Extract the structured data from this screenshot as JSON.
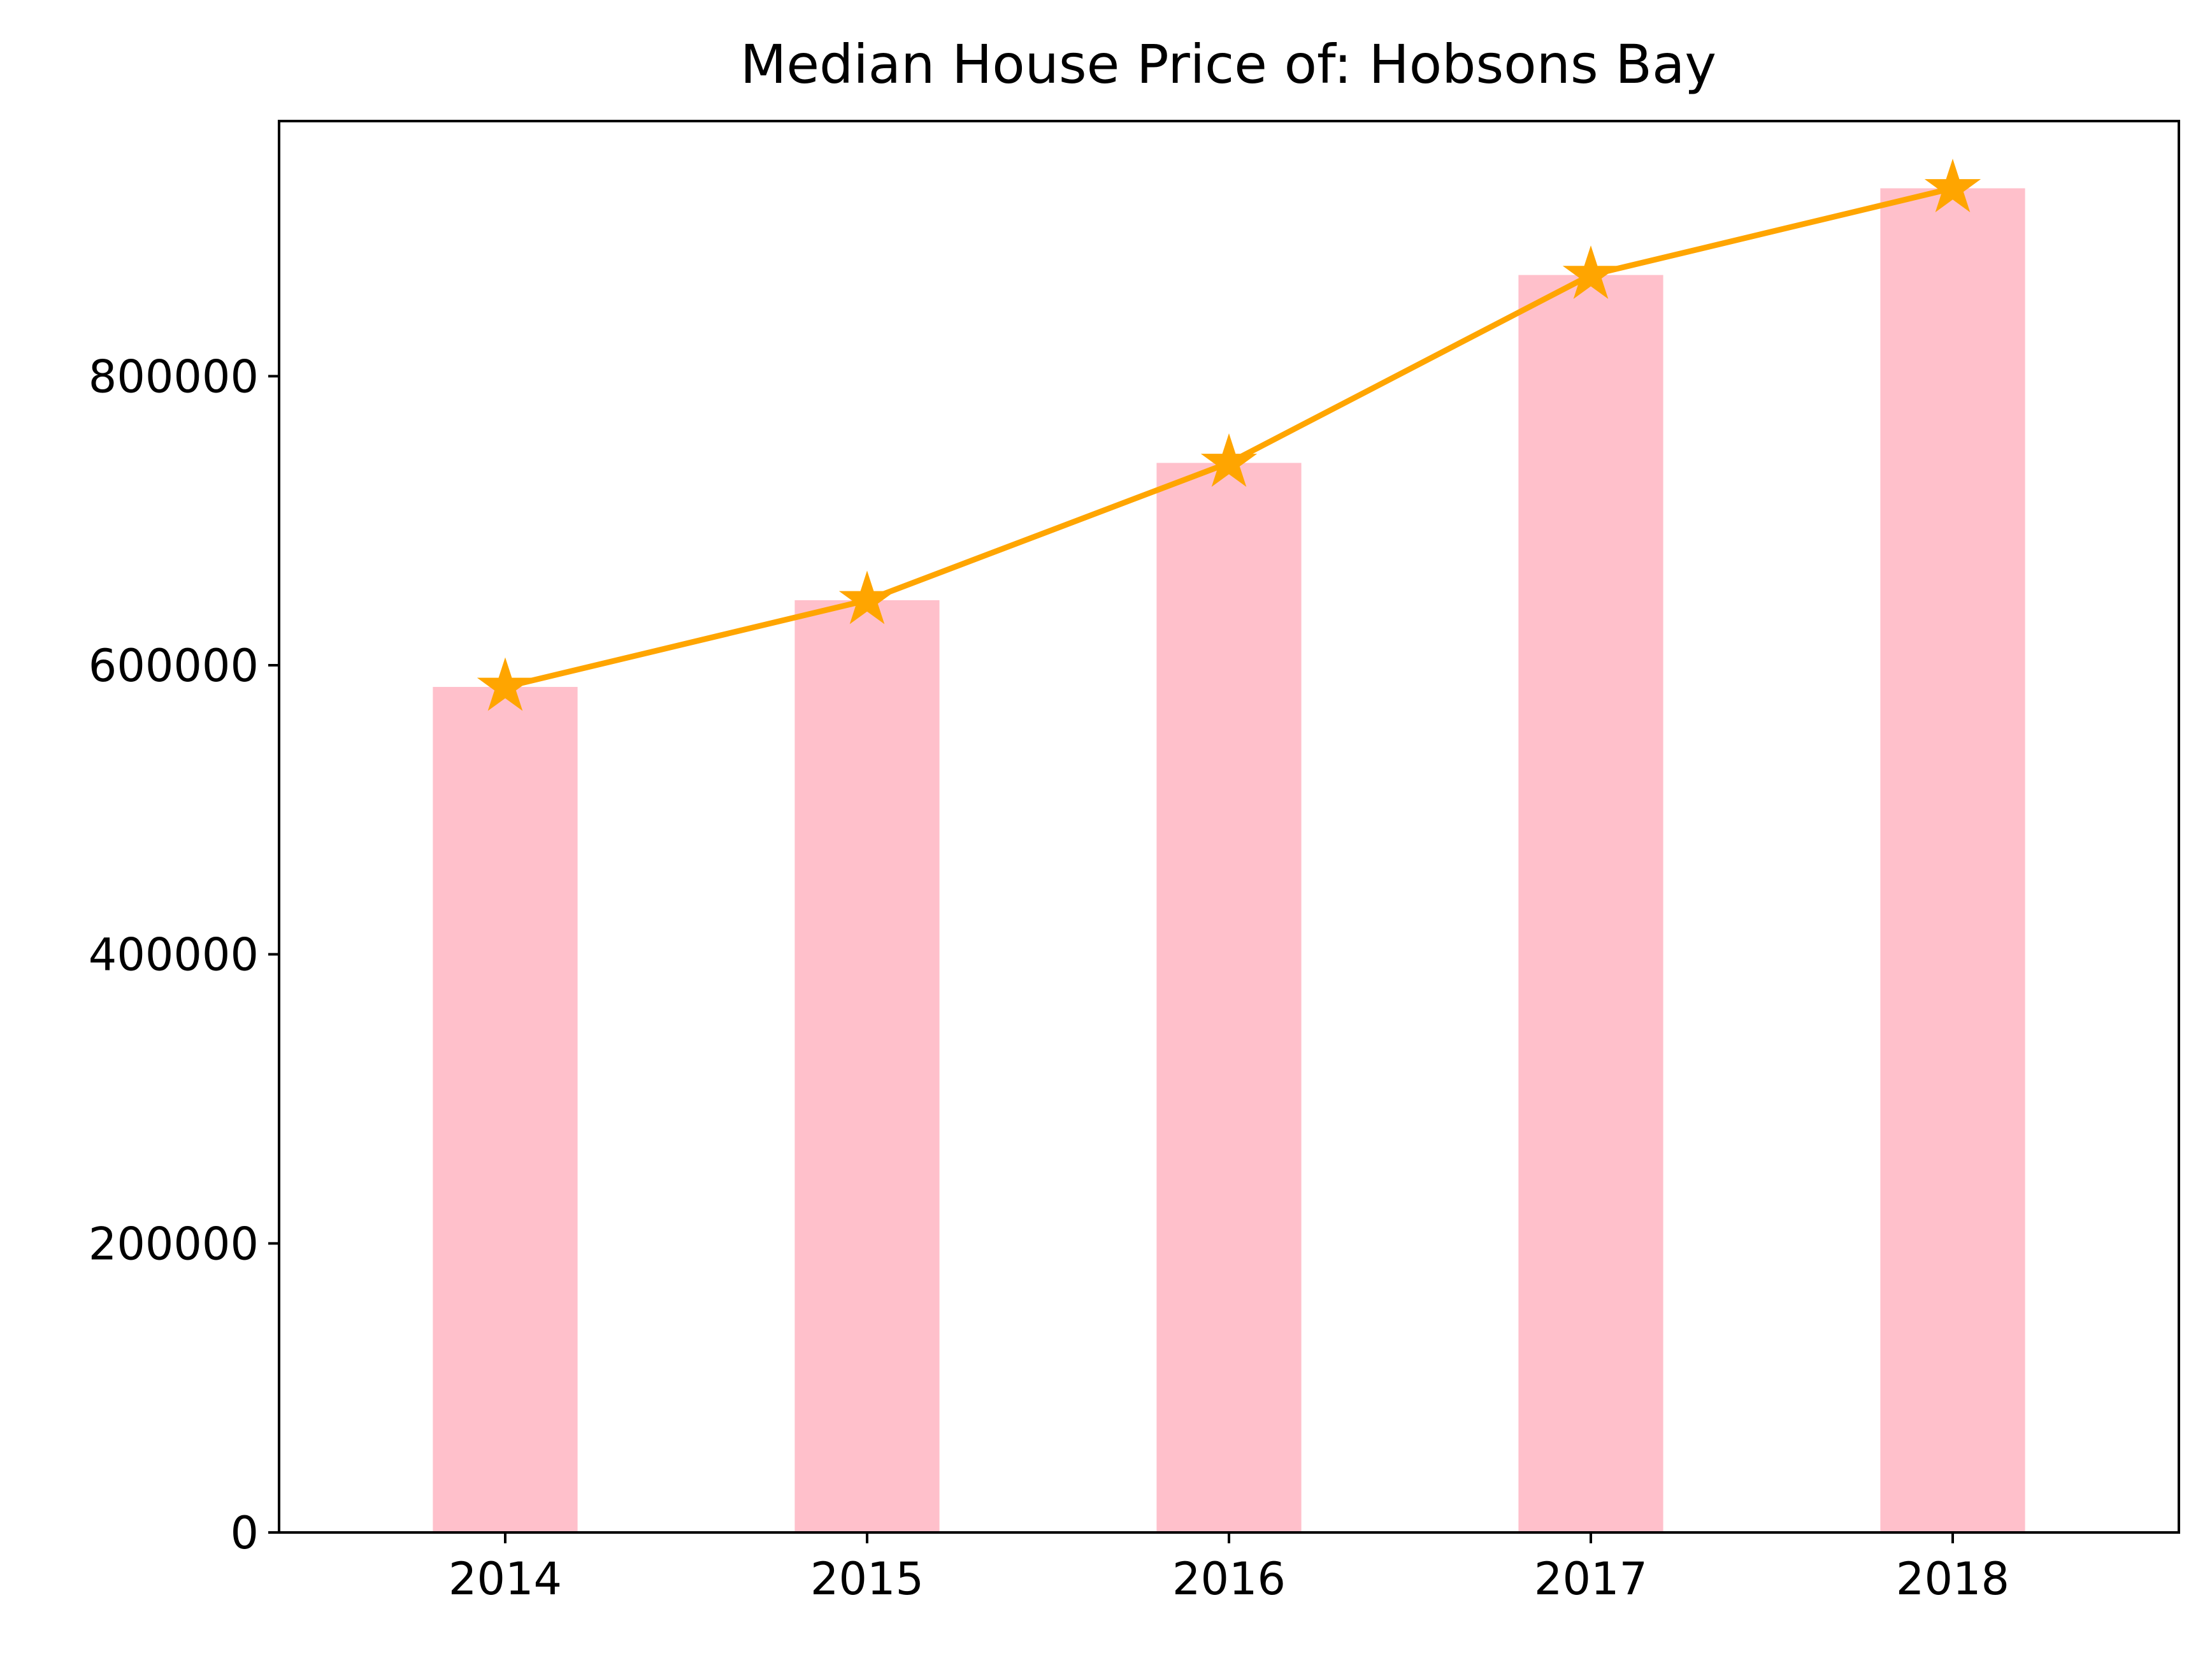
{
  "chart_data": {
    "type": "bar",
    "title": "Median House Price of: Hobsons Bay",
    "xlabel": "",
    "ylabel": "",
    "categories": [
      "2014",
      "2015",
      "2016",
      "2017",
      "2018"
    ],
    "series": [
      {
        "kind": "bar",
        "values": [
          585000,
          645000,
          740000,
          870000,
          930000
        ],
        "color": "#FFC0CB"
      },
      {
        "kind": "line",
        "marker": "star",
        "values": [
          585000,
          645000,
          740000,
          870000,
          930000
        ],
        "color": "#FFA500"
      }
    ],
    "ylim": [
      0,
      976500
    ],
    "yticks": [
      0,
      200000,
      400000,
      600000,
      800000
    ],
    "ytick_labels": [
      "0",
      "200000",
      "400000",
      "600000",
      "800000"
    ],
    "grid": false,
    "legend": "none"
  }
}
